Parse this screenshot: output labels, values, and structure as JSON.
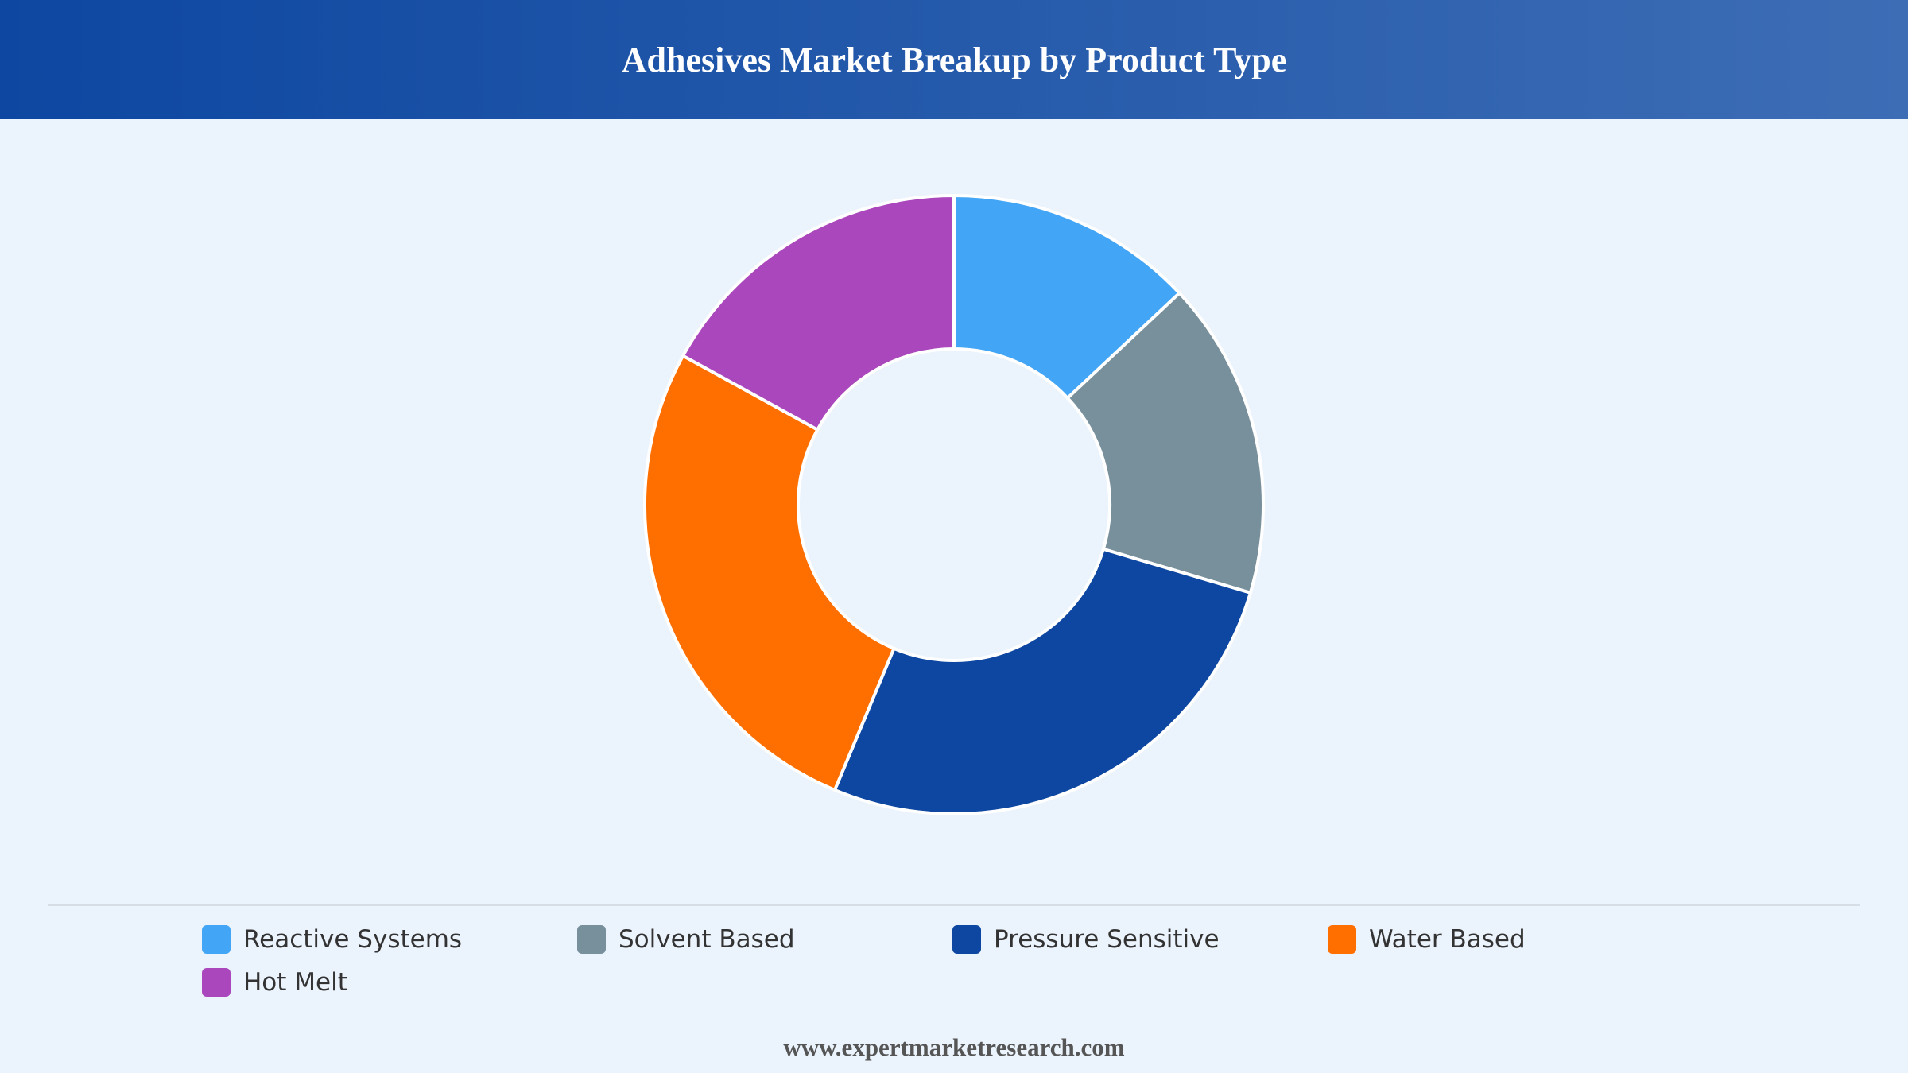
{
  "chart_data": {
    "type": "donut",
    "title": "Adhesives Market Breakup by Product Type",
    "categories": [
      "Reactive Systems",
      "Solvent Based",
      "Pressure Sensitive",
      "Water Based",
      "Hot Melt"
    ],
    "values": [
      13,
      16.6,
      26.7,
      26.7,
      17
    ],
    "colors": [
      "#42a5f5",
      "#78909c",
      "#0d47a1",
      "#ff6f00",
      "#ab47bc"
    ],
    "legend": "bottom",
    "footer": "www.expertmarketresearch.com"
  }
}
